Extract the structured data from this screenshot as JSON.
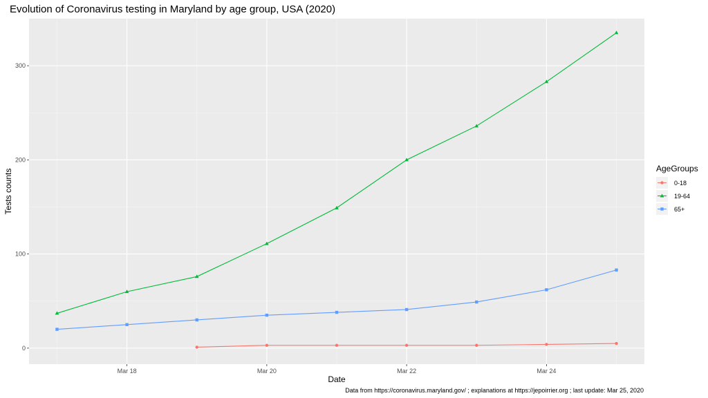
{
  "chart_data": {
    "type": "line",
    "title": "Evolution of Coronavirus testing in Maryland by age group, USA (2020)",
    "xlabel": "Date",
    "ylabel": "Tests counts",
    "caption": "Data from https://coronavirus.maryland.gov/ ; explanations at https://jepoirrier.org ; last update: Mar 25, 2020",
    "x": [
      "2020-03-17",
      "2020-03-18",
      "2020-03-19",
      "2020-03-20",
      "2020-03-21",
      "2020-03-22",
      "2020-03-23",
      "2020-03-24",
      "2020-03-25"
    ],
    "x_ticks": [
      "2020-03-18",
      "2020-03-20",
      "2020-03-22",
      "2020-03-24"
    ],
    "x_tick_labels": [
      "Mar 18",
      "Mar 20",
      "Mar 22",
      "Mar 24"
    ],
    "xlim": [
      "2020-03-16.6",
      "2020-03-25.4"
    ],
    "ylim": [
      -17,
      350
    ],
    "y_ticks": [
      0,
      100,
      200,
      300
    ],
    "grid": true,
    "legend_title": "AgeGroups",
    "legend_position": "right",
    "series": [
      {
        "name": "0-18",
        "color": "#F8766D",
        "marker": "circle",
        "values": [
          null,
          null,
          1,
          3,
          3,
          3,
          3,
          4,
          5
        ]
      },
      {
        "name": "19-64",
        "color": "#00BA38",
        "marker": "triangle",
        "values": [
          37,
          60,
          76,
          111,
          149,
          200,
          236,
          283,
          335
        ]
      },
      {
        "name": "65+",
        "color": "#619CFF",
        "marker": "square",
        "values": [
          20,
          25,
          30,
          35,
          38,
          41,
          49,
          62,
          83
        ]
      }
    ]
  }
}
